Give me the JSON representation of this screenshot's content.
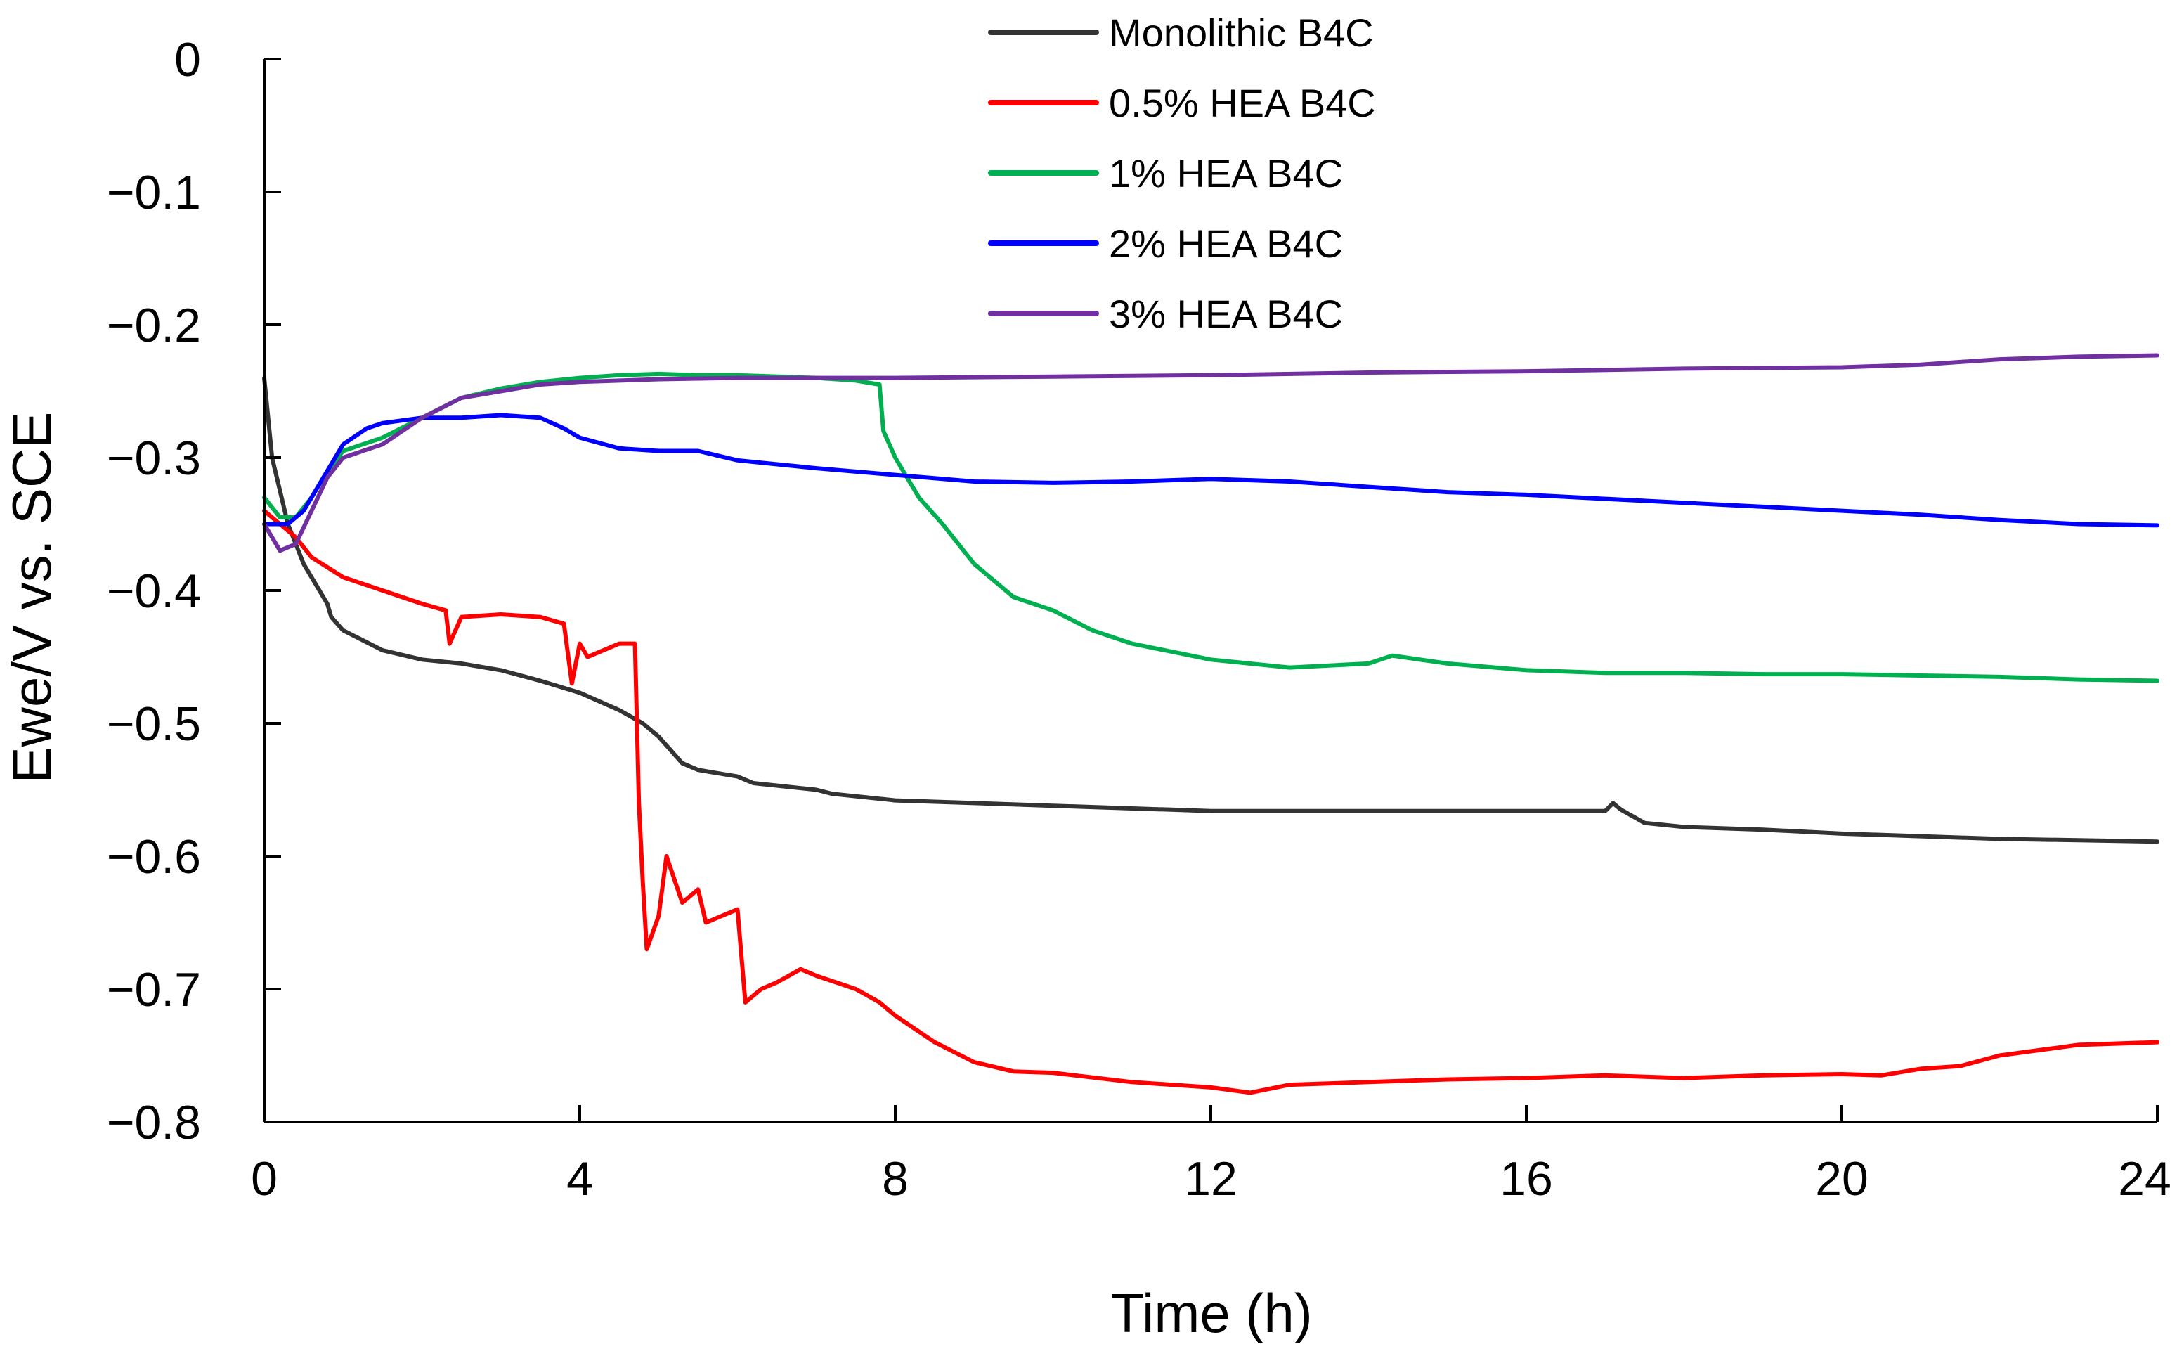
{
  "chart_data": {
    "type": "line",
    "title": "",
    "xlabel": "Time (h)",
    "ylabel": "Ewe/V vs. SCE",
    "xlim": [
      0,
      24
    ],
    "ylim": [
      -0.8,
      0
    ],
    "xticks": [
      0,
      4,
      8,
      12,
      16,
      20,
      24
    ],
    "yticks": [
      0,
      -0.1,
      -0.2,
      -0.3,
      -0.4,
      -0.5,
      -0.6,
      -0.7,
      -0.8
    ],
    "xtick_labels": [
      "0",
      "4",
      "8",
      "12",
      "16",
      "20",
      "24"
    ],
    "ytick_labels": [
      "0",
      "−0.1",
      "−0.2",
      "−0.3",
      "−0.4",
      "−0.5",
      "−0.6",
      "−0.7",
      "−0.8"
    ],
    "grid": false,
    "legend": "top-center",
    "series": [
      {
        "name": "Monolithic B4C",
        "color": "#333333",
        "x": [
          0,
          0.1,
          0.3,
          0.5,
          0.8,
          0.85,
          1.0,
          1.5,
          2.0,
          2.5,
          3.0,
          3.5,
          4.0,
          4.5,
          4.8,
          5.0,
          5.3,
          5.5,
          6.0,
          6.2,
          7.0,
          7.2,
          8.0,
          9.0,
          10.0,
          11.0,
          11.5,
          12.0,
          13.0,
          14.0,
          15.0,
          16.0,
          17.0,
          17.1,
          17.2,
          17.5,
          18.0,
          19.0,
          20.0,
          21.0,
          22.0,
          23.0,
          24.0
        ],
        "y": [
          -0.24,
          -0.3,
          -0.35,
          -0.38,
          -0.41,
          -0.42,
          -0.43,
          -0.445,
          -0.452,
          -0.455,
          -0.46,
          -0.468,
          -0.477,
          -0.49,
          -0.5,
          -0.51,
          -0.53,
          -0.535,
          -0.54,
          -0.545,
          -0.55,
          -0.553,
          -0.558,
          -0.56,
          -0.562,
          -0.564,
          -0.565,
          -0.566,
          -0.566,
          -0.566,
          -0.566,
          -0.566,
          -0.566,
          -0.56,
          -0.565,
          -0.575,
          -0.578,
          -0.58,
          -0.583,
          -0.585,
          -0.587,
          -0.588,
          -0.589
        ]
      },
      {
        "name": "0.5% HEA B4C",
        "color": "#ff0000",
        "x": [
          0,
          0.2,
          0.4,
          0.6,
          1.0,
          1.5,
          2.0,
          2.3,
          2.35,
          2.5,
          3.0,
          3.5,
          3.8,
          3.9,
          4.0,
          4.1,
          4.5,
          4.7,
          4.75,
          4.8,
          4.85,
          5.0,
          5.1,
          5.3,
          5.5,
          5.6,
          5.8,
          6.0,
          6.1,
          6.3,
          6.5,
          6.8,
          7.0,
          7.5,
          7.8,
          8.0,
          8.5,
          9.0,
          9.5,
          10.0,
          11.0,
          12.0,
          12.5,
          13.0,
          14.0,
          15.0,
          16.0,
          17.0,
          18.0,
          19.0,
          20.0,
          20.5,
          21.0,
          21.5,
          22.0,
          23.0,
          24.0
        ],
        "y": [
          -0.34,
          -0.35,
          -0.36,
          -0.375,
          -0.39,
          -0.4,
          -0.41,
          -0.415,
          -0.44,
          -0.42,
          -0.418,
          -0.42,
          -0.425,
          -0.47,
          -0.44,
          -0.45,
          -0.44,
          -0.44,
          -0.56,
          -0.62,
          -0.67,
          -0.645,
          -0.6,
          -0.635,
          -0.625,
          -0.65,
          -0.645,
          -0.64,
          -0.71,
          -0.7,
          -0.695,
          -0.685,
          -0.69,
          -0.7,
          -0.71,
          -0.72,
          -0.74,
          -0.755,
          -0.762,
          -0.763,
          -0.77,
          -0.774,
          -0.778,
          -0.772,
          -0.77,
          -0.768,
          -0.767,
          -0.765,
          -0.767,
          -0.765,
          -0.764,
          -0.765,
          -0.76,
          -0.758,
          -0.75,
          -0.742,
          -0.74
        ]
      },
      {
        "name": "1% HEA B4C",
        "color": "#00b050",
        "x": [
          0,
          0.2,
          0.4,
          0.6,
          0.8,
          1.0,
          1.5,
          2.0,
          2.5,
          3.0,
          3.5,
          4.0,
          4.5,
          5.0,
          5.5,
          6.0,
          7.0,
          7.5,
          7.8,
          7.85,
          8.0,
          8.3,
          8.6,
          9.0,
          9.5,
          10.0,
          10.5,
          11.0,
          12.0,
          13.0,
          14.0,
          14.3,
          15.0,
          16.0,
          17.0,
          18.0,
          19.0,
          20.0,
          21.0,
          22.0,
          23.0,
          24.0
        ],
        "y": [
          -0.33,
          -0.345,
          -0.345,
          -0.33,
          -0.31,
          -0.295,
          -0.285,
          -0.27,
          -0.255,
          -0.248,
          -0.243,
          -0.24,
          -0.238,
          -0.237,
          -0.238,
          -0.238,
          -0.24,
          -0.242,
          -0.245,
          -0.28,
          -0.3,
          -0.33,
          -0.35,
          -0.38,
          -0.405,
          -0.415,
          -0.43,
          -0.44,
          -0.452,
          -0.458,
          -0.455,
          -0.449,
          -0.455,
          -0.46,
          -0.462,
          -0.462,
          -0.463,
          -0.463,
          -0.464,
          -0.465,
          -0.467,
          -0.468
        ]
      },
      {
        "name": "2% HEA B4C",
        "color": "#0000ff",
        "x": [
          0,
          0.3,
          0.5,
          0.8,
          1.0,
          1.3,
          1.5,
          2.0,
          2.5,
          3.0,
          3.5,
          3.8,
          4.0,
          4.5,
          5.0,
          5.5,
          6.0,
          7.0,
          8.0,
          9.0,
          10.0,
          11.0,
          12.0,
          13.0,
          14.0,
          15.0,
          16.0,
          17.0,
          18.0,
          19.0,
          20.0,
          21.0,
          22.0,
          23.0,
          24.0
        ],
        "y": [
          -0.35,
          -0.35,
          -0.34,
          -0.31,
          -0.29,
          -0.278,
          -0.274,
          -0.27,
          -0.27,
          -0.268,
          -0.27,
          -0.278,
          -0.285,
          -0.293,
          -0.295,
          -0.295,
          -0.302,
          -0.308,
          -0.313,
          -0.318,
          -0.319,
          -0.318,
          -0.316,
          -0.318,
          -0.322,
          -0.326,
          -0.328,
          -0.331,
          -0.334,
          -0.337,
          -0.34,
          -0.343,
          -0.347,
          -0.35,
          -0.351
        ]
      },
      {
        "name": "3% HEA B4C",
        "color": "#7030a0",
        "x": [
          0,
          0.2,
          0.4,
          0.6,
          0.8,
          1.0,
          1.5,
          2.0,
          2.5,
          3.0,
          3.5,
          4.0,
          5.0,
          6.0,
          7.0,
          8.0,
          10.0,
          12.0,
          14.0,
          16.0,
          18.0,
          20.0,
          21.0,
          22.0,
          23.0,
          24.0
        ],
        "y": [
          -0.35,
          -0.37,
          -0.365,
          -0.34,
          -0.315,
          -0.3,
          -0.29,
          -0.27,
          -0.255,
          -0.25,
          -0.245,
          -0.243,
          -0.241,
          -0.24,
          -0.24,
          -0.24,
          -0.239,
          -0.238,
          -0.236,
          -0.235,
          -0.233,
          -0.232,
          -0.23,
          -0.226,
          -0.224,
          -0.223
        ]
      }
    ]
  }
}
